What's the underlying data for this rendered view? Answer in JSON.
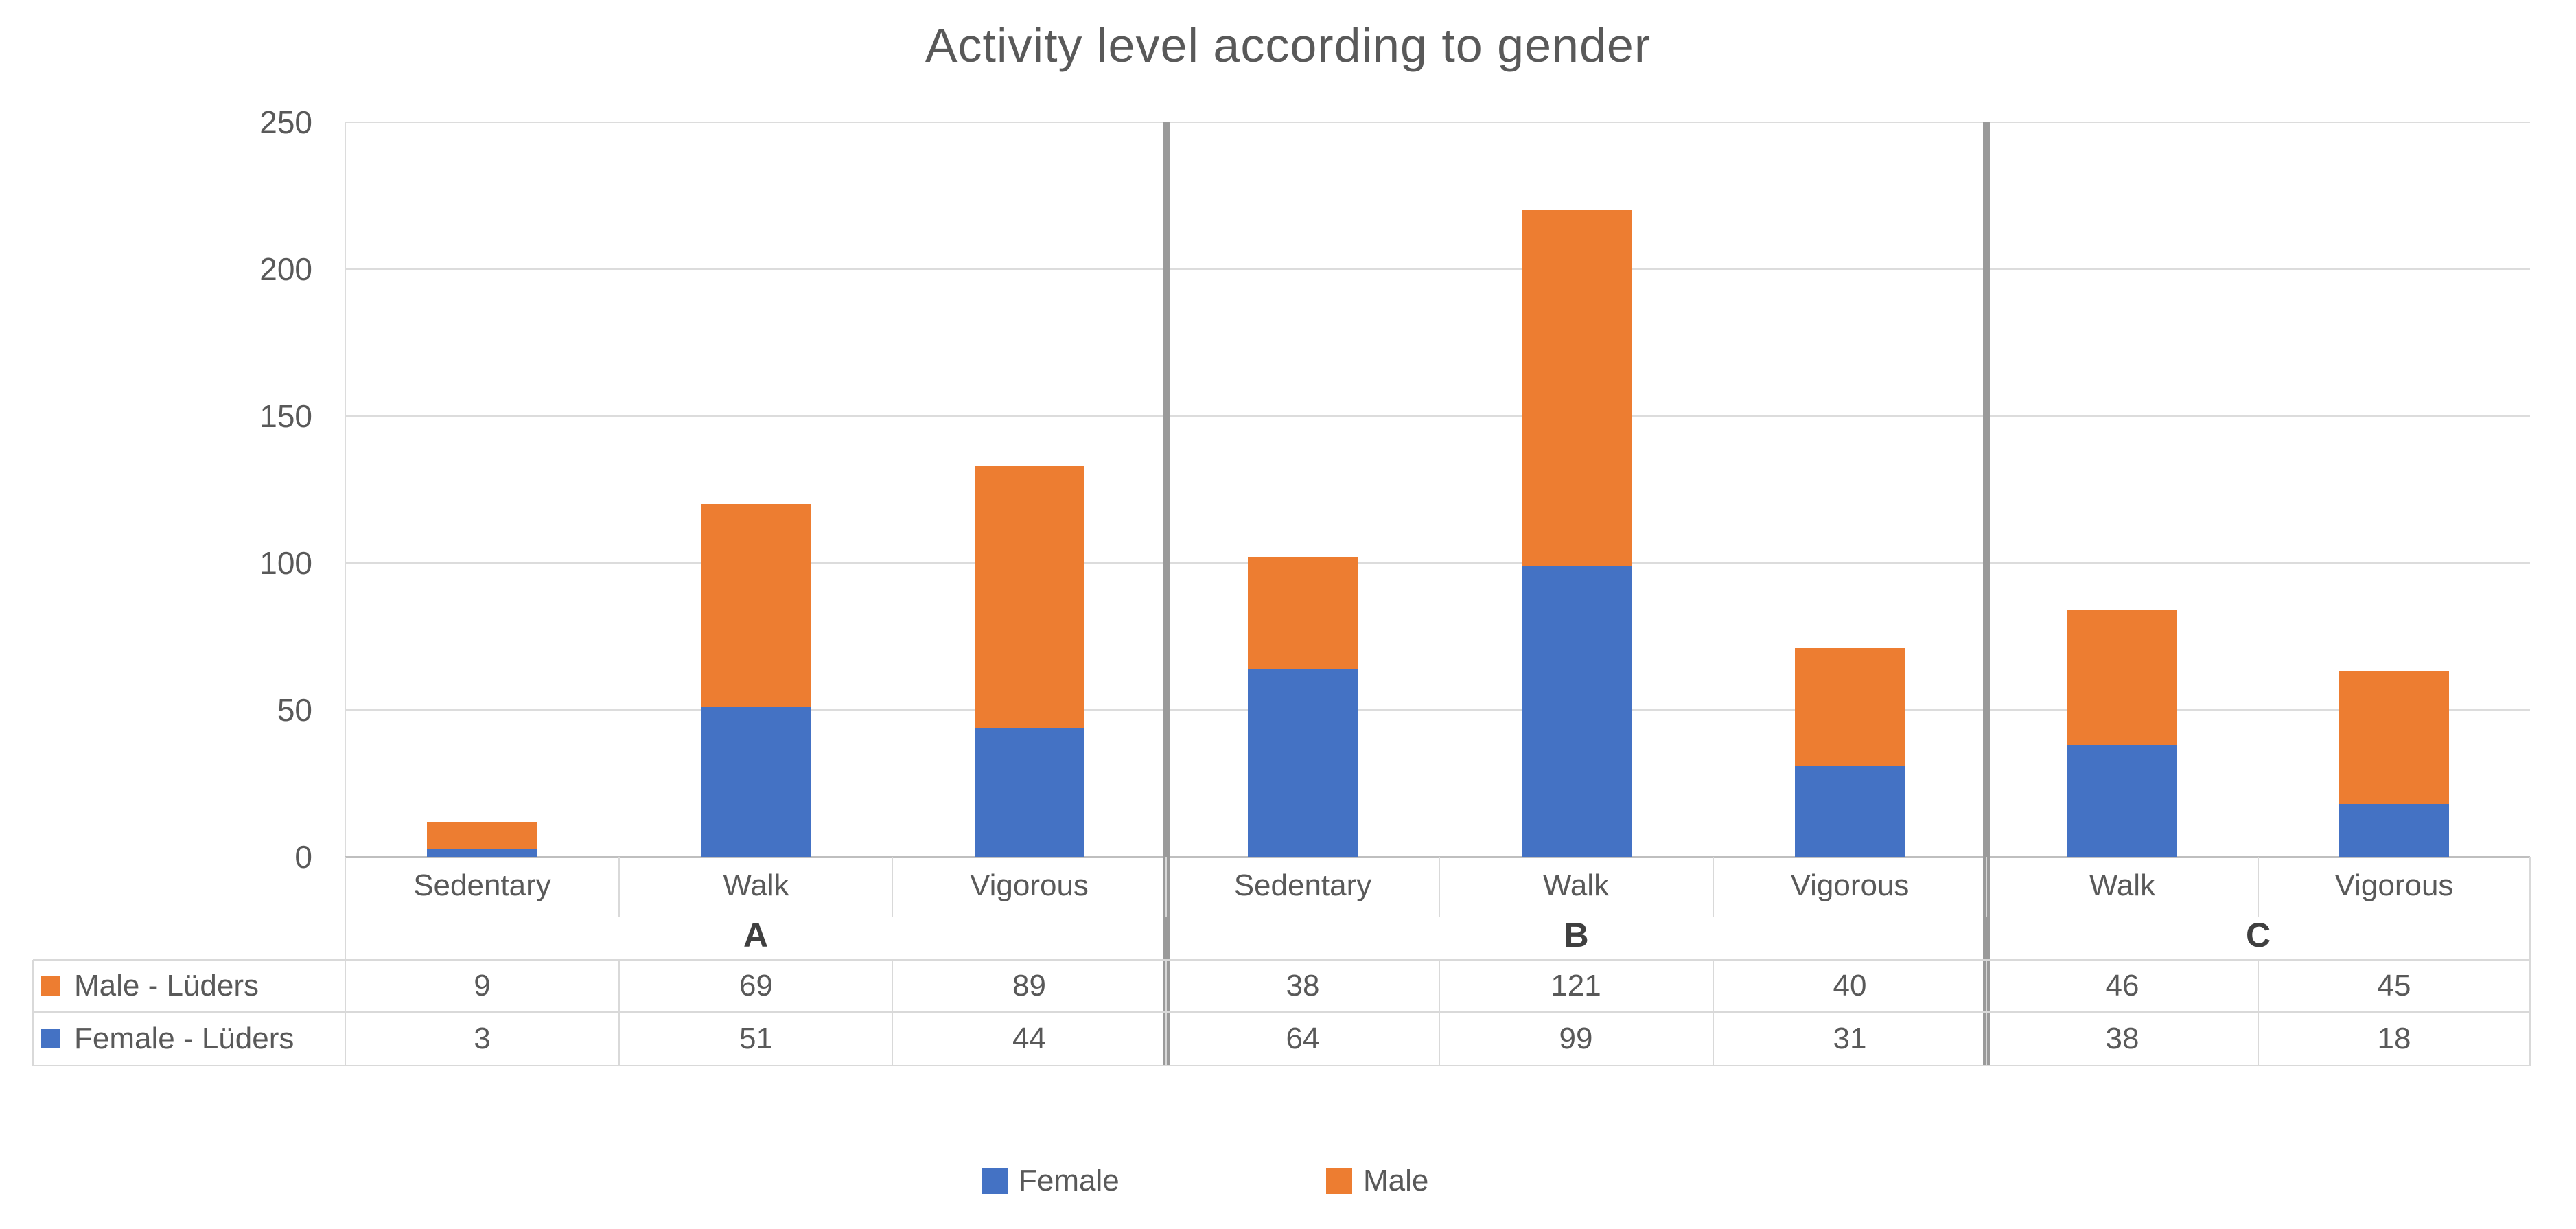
{
  "title": "Activity level according to gender",
  "colors": {
    "male": "#ED7D31",
    "female": "#4472C4",
    "grid": "#DCDCDC",
    "axis_line": "#BFBFBF",
    "cell_border": "#D9D9D9",
    "separator": "#9A9A9A",
    "text": "#595959",
    "group_label_text": "#3F3F3F"
  },
  "y_axis": {
    "ticks": [
      0,
      50,
      100,
      150,
      200,
      250
    ],
    "max": 250
  },
  "legend": [
    {
      "label": "Female",
      "color_key": "female"
    },
    {
      "label": "Male",
      "color_key": "male"
    }
  ],
  "table": {
    "row_headers": [
      {
        "label": "Male - Lüders",
        "color_key": "male"
      },
      {
        "label": "Female - Lüders",
        "color_key": "female"
      }
    ]
  },
  "chart_data": {
    "type": "bar",
    "stacked": true,
    "title": "Activity level according to gender",
    "ylabel": "",
    "xlabel": "",
    "ylim": [
      0,
      250
    ],
    "grid": true,
    "legend_position": "bottom",
    "series_order_bottom_to_top": [
      "Female",
      "Male"
    ],
    "groups": [
      {
        "label": "A",
        "categories": [
          "Sedentary",
          "Walk",
          "Vigorous"
        ],
        "female": [
          3,
          51,
          44
        ],
        "male": [
          9,
          69,
          89
        ]
      },
      {
        "label": "B",
        "categories": [
          "Sedentary",
          "Walk",
          "Vigorous"
        ],
        "female": [
          64,
          99,
          31
        ],
        "male": [
          38,
          121,
          40
        ]
      },
      {
        "label": "C",
        "categories": [
          "Walk",
          "Vigorous"
        ],
        "female": [
          38,
          18
        ],
        "male": [
          46,
          45
        ]
      }
    ]
  }
}
